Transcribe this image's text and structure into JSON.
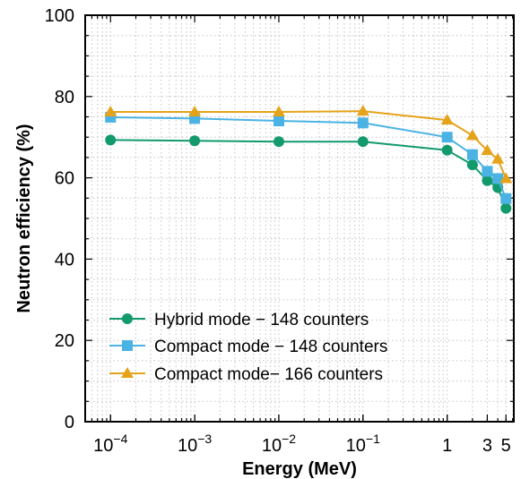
{
  "chart_data": {
    "type": "line",
    "xscale": "log",
    "xlabel": "Energy (MeV)",
    "ylabel": "Neutron efficiency (%)",
    "xlim": [
      5e-05,
      6.2
    ],
    "ylim": [
      0,
      100
    ],
    "yticks": [
      0,
      20,
      40,
      60,
      80,
      100
    ],
    "xticks": [
      {
        "value": 0.0001,
        "base": "10",
        "exp": "−4"
      },
      {
        "value": 0.001,
        "base": "10",
        "exp": "−3"
      },
      {
        "value": 0.01,
        "base": "10",
        "exp": "−2"
      },
      {
        "value": 0.1,
        "base": "10",
        "exp": "−1"
      },
      {
        "value": 1,
        "base": "1",
        "exp": ""
      },
      {
        "value": 3,
        "base": "3",
        "exp": ""
      },
      {
        "value": 5,
        "base": "5",
        "exp": ""
      }
    ],
    "grid": true,
    "legend_position": "bottom-left",
    "series": [
      {
        "name": "Hybrid mode − 148 counters",
        "color": "#129a6c",
        "marker": "circle",
        "x": [
          0.0001,
          0.001,
          0.01,
          0.1,
          1,
          2,
          3,
          4,
          5
        ],
        "y": [
          69.3,
          69.1,
          68.9,
          68.9,
          66.8,
          63.2,
          59.3,
          57.6,
          52.5
        ]
      },
      {
        "name": "Compact mode − 148 counters",
        "color": "#4bb3e3",
        "marker": "square",
        "x": [
          0.0001,
          0.001,
          0.01,
          0.1,
          1,
          2,
          3,
          4,
          5
        ],
        "y": [
          74.9,
          74.6,
          74.0,
          73.5,
          70.0,
          65.7,
          61.6,
          59.8,
          54.9
        ]
      },
      {
        "name": "Compact mode− 166 counters",
        "color": "#e5a31a",
        "marker": "triangle",
        "x": [
          0.0001,
          0.001,
          0.01,
          0.1,
          1,
          2,
          3,
          4,
          5
        ],
        "y": [
          76.2,
          76.2,
          76.2,
          76.4,
          74.2,
          70.4,
          66.7,
          64.6,
          59.8
        ]
      }
    ]
  }
}
